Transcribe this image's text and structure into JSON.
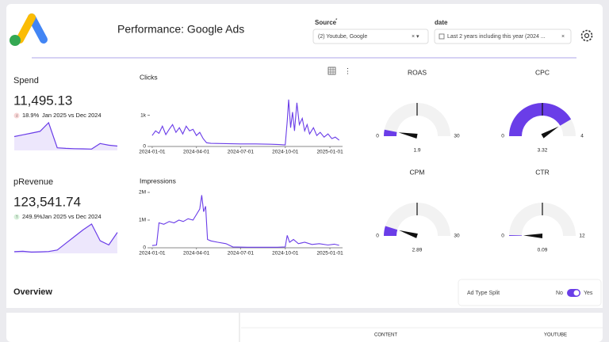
{
  "header": {
    "title": "Performance: Google Ads"
  },
  "filters": [
    {
      "label": "Source",
      "required": "*",
      "value": "(2) Youtube, Google"
    },
    {
      "label": "date",
      "value": "Last 2 years including this year (2024 ..."
    }
  ],
  "kpis": [
    {
      "label": "Spend",
      "value": "11,495.13",
      "change": "18.9%",
      "direction": "down",
      "period": "Jan 2025 vs Dec 2024",
      "trend": [
        8000,
        9000,
        10000,
        11000,
        16000,
        1500,
        1200,
        1000,
        900,
        800,
        4000,
        3000,
        2500
      ]
    },
    {
      "label": "pRevenue",
      "value": "123,541.74",
      "change": "249.9%",
      "direction": "up",
      "period": "Jan 2025 vs Dec 2024",
      "trend": [
        2000,
        2500,
        1500,
        1800,
        2200,
        4000,
        12000,
        20000,
        28000,
        35000,
        15000,
        10000,
        25000
      ]
    }
  ],
  "charts": [
    {
      "type": "line",
      "title": "Clicks",
      "color": "#6a3de8",
      "x": [
        "2024-01-01",
        "2024-01-08",
        "2024-01-15",
        "2024-01-22",
        "2024-01-29",
        "2024-02-05",
        "2024-02-12",
        "2024-02-19",
        "2024-02-26",
        "2024-03-04",
        "2024-03-11",
        "2024-03-18",
        "2024-03-25",
        "2024-04-01",
        "2024-04-08",
        "2024-04-15",
        "2024-04-22",
        "2024-05-01",
        "2024-06-01",
        "2024-07-01",
        "2024-08-01",
        "2024-09-01",
        "2024-09-18",
        "2024-10-01",
        "2024-10-05",
        "2024-10-08",
        "2024-10-12",
        "2024-10-16",
        "2024-10-20",
        "2024-10-25",
        "2024-10-30",
        "2024-11-05",
        "2024-11-10",
        "2024-11-15",
        "2024-11-20",
        "2024-11-28",
        "2024-12-05",
        "2024-12-12",
        "2024-12-20",
        "2024-12-28",
        "2025-01-05",
        "2025-01-12",
        "2025-01-20"
      ],
      "values": [
        350,
        500,
        420,
        650,
        380,
        550,
        700,
        450,
        600,
        400,
        650,
        500,
        550,
        350,
        450,
        250,
        120,
        100,
        90,
        80,
        80,
        70,
        60,
        50,
        800,
        1500,
        600,
        1100,
        500,
        1400,
        700,
        900,
        500,
        700,
        400,
        600,
        350,
        450,
        300,
        400,
        250,
        300,
        200
      ],
      "xlim": [
        "2023-12-06",
        "2025-01-27"
      ],
      "xticks": [
        "2024-01-01",
        "2024-04-01",
        "2024-07-01",
        "2024-10-01",
        "2025-01-01"
      ],
      "ylim": [
        0,
        1850
      ],
      "yticks": [
        0,
        {
          "value": 1000,
          "label": "1k"
        }
      ]
    },
    {
      "type": "line",
      "title": "Impressions",
      "color": "#6a3de8",
      "x": [
        "2024-01-01",
        "2024-01-10",
        "2024-01-15",
        "2024-01-25",
        "2024-02-05",
        "2024-02-15",
        "2024-02-25",
        "2024-03-05",
        "2024-03-15",
        "2024-03-25",
        "2024-04-01",
        "2024-04-08",
        "2024-04-12",
        "2024-04-16",
        "2024-04-20",
        "2024-04-24",
        "2024-05-01",
        "2024-05-15",
        "2024-06-01",
        "2024-06-15",
        "2024-07-15",
        "2024-08-15",
        "2024-09-15",
        "2024-10-01",
        "2024-10-05",
        "2024-10-10",
        "2024-10-18",
        "2024-10-28",
        "2024-11-10",
        "2024-11-25",
        "2024-12-10",
        "2024-12-28",
        "2025-01-10",
        "2025-01-20"
      ],
      "values": [
        80000,
        100000,
        900000,
        850000,
        950000,
        900000,
        1000000,
        950000,
        1050000,
        1000000,
        1200000,
        1400000,
        1900000,
        1300000,
        1500000,
        300000,
        250000,
        200000,
        150000,
        30000,
        20000,
        20000,
        20000,
        30000,
        450000,
        200000,
        300000,
        150000,
        200000,
        120000,
        150000,
        100000,
        130000,
        90000
      ],
      "xlim": [
        "2023-12-06",
        "2025-01-27"
      ],
      "xticks": [
        "2024-01-01",
        "2024-04-01",
        "2024-07-01",
        "2024-10-01",
        "2025-01-01"
      ],
      "ylim": [
        0,
        2000000
      ],
      "yticks": [
        0,
        {
          "value": 1000000,
          "label": "1M"
        },
        {
          "value": 2000000,
          "label": "2M"
        }
      ]
    }
  ],
  "gauges": [
    {
      "title": "ROAS",
      "min": 0,
      "max": 30,
      "value": 1.9,
      "color": "#6a3de8"
    },
    {
      "title": "CPC",
      "min": 0,
      "max": 4,
      "value": 3.32,
      "color": "#6a3de8"
    },
    {
      "title": "CPM",
      "min": 0,
      "max": 30,
      "value": 2.89,
      "color": "#6a3de8"
    },
    {
      "title": "CTR",
      "min": 0,
      "max": 12,
      "value": 0.09,
      "color": "#6a3de8"
    }
  ],
  "overview": {
    "title": "Overview",
    "toggle": {
      "label": "Ad Type Split",
      "off": "No",
      "on": "Yes",
      "checked": true
    },
    "columns": [
      "CONTENT",
      "YOUTUBE"
    ]
  }
}
